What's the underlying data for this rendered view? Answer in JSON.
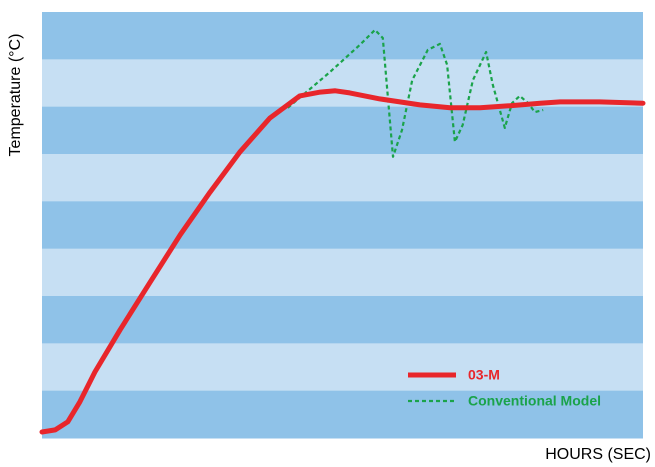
{
  "chart_data": {
    "type": "line",
    "y_label": "Temperature (°C)",
    "x_label": "HOURS (SEC)",
    "xlim": [
      0,
      100
    ],
    "ylim": [
      0,
      100
    ],
    "legend": "lower right",
    "series": [
      {
        "name": "03-M",
        "color": "#e8262b",
        "style": "solid",
        "x": [
          0,
          2.2,
          4.3,
          6.3,
          8.8,
          13.0,
          18.0,
          23.0,
          27.95,
          32.9,
          37.9,
          42.9,
          46.3,
          48.8,
          51.2,
          56.2,
          62.9,
          67.9,
          72.9,
          77.9,
          82.9,
          86.2,
          92.8,
          100
        ],
        "values": [
          1.4,
          1.9,
          3.8,
          8.5,
          15.5,
          25.4,
          36.6,
          47.7,
          57.7,
          67.1,
          75.1,
          80.3,
          81.2,
          81.5,
          81.0,
          79.6,
          78.2,
          77.5,
          77.5,
          78.0,
          78.6,
          78.9,
          78.9,
          78.6
        ]
      },
      {
        "name": "Conventional Model",
        "color": "#1aa34a",
        "style": "dashed",
        "x": [
          40.9,
          47.9,
          52.9,
          55.4,
          56.7,
          58.4,
          59.9,
          61.6,
          64.2,
          66.2,
          67.4,
          68.7,
          70.0,
          71.7,
          73.9,
          75.0,
          77.0,
          78.2,
          79.5,
          80.9,
          82.0,
          83.4
        ],
        "values": [
          77.5,
          85.9,
          92.3,
          95.8,
          93.9,
          66.0,
          72.3,
          84.0,
          91.1,
          92.5,
          87.6,
          69.5,
          73.5,
          84.0,
          90.6,
          82.9,
          72.8,
          78.6,
          80.3,
          78.6,
          76.5,
          77.0
        ]
      }
    ]
  }
}
